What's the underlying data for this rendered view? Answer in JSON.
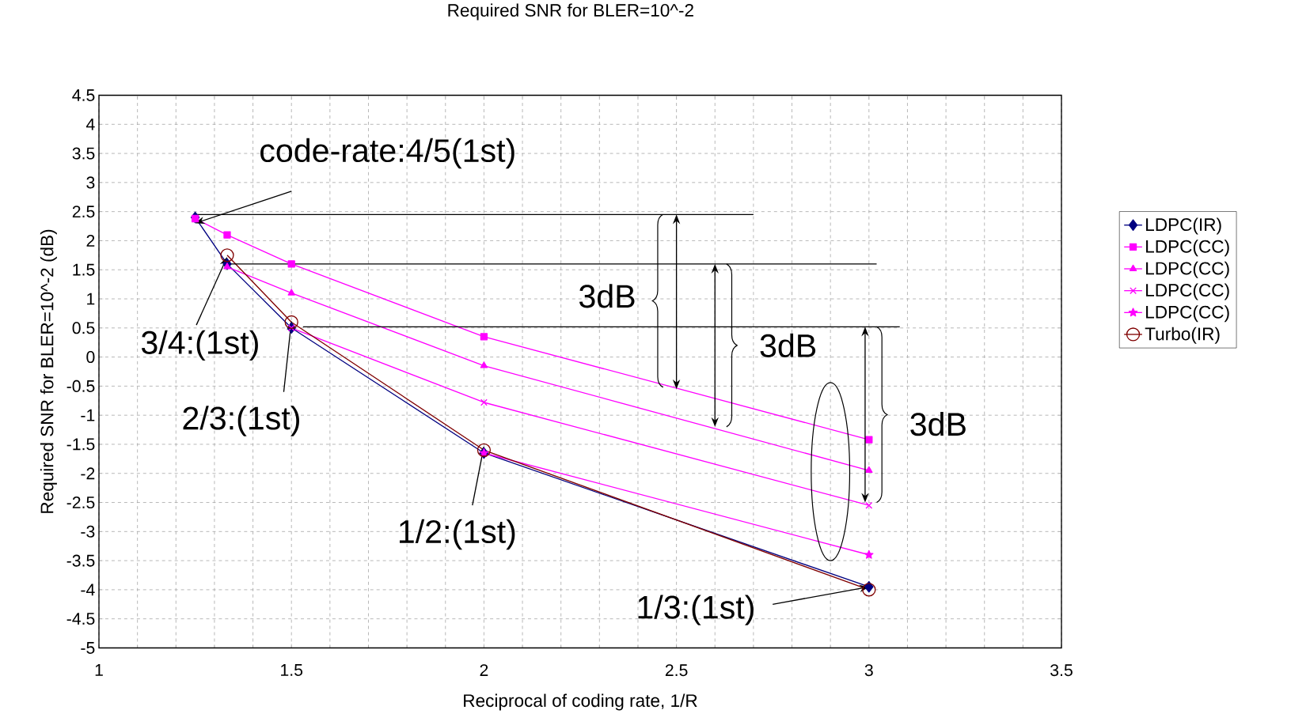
{
  "chart_data": {
    "type": "line",
    "title": "Required SNR for BLER=10^-2",
    "xlabel": "Reciprocal of coding rate, 1/R",
    "ylabel": "Required SNR for BLER=10^-2 (dB)",
    "xlim": [
      1,
      3.5
    ],
    "xticks": [
      1,
      1.5,
      2,
      2.5,
      3,
      3.5
    ],
    "ylim": [
      -5,
      4.5
    ],
    "yticks": [
      -5,
      -4.5,
      -4,
      -3.5,
      -3,
      -2.5,
      -2,
      -1.5,
      -1,
      -0.5,
      0,
      0.5,
      1,
      1.5,
      2,
      2.5,
      3,
      3.5,
      4,
      4.5
    ],
    "grid": true,
    "legend": "right",
    "series": [
      {
        "name": "LDPC(IR)",
        "color": "#000080",
        "marker": "diamond",
        "x": [
          1.25,
          1.333,
          1.5,
          2,
          3
        ],
        "values": [
          2.4,
          1.6,
          0.5,
          -1.65,
          -3.95
        ]
      },
      {
        "name": "LDPC(CC)",
        "color": "#ff00ff",
        "marker": "square",
        "x": [
          1.25,
          1.333,
          1.5,
          2,
          3
        ],
        "values": [
          2.38,
          2.1,
          1.6,
          0.35,
          -1.42
        ]
      },
      {
        "name": "LDPC(CC)",
        "color": "#ff00ff",
        "marker": "triangle",
        "x": [
          1.333,
          1.5,
          2,
          3
        ],
        "values": [
          1.55,
          1.1,
          -0.15,
          -1.95
        ]
      },
      {
        "name": "LDPC(CC)",
        "color": "#ff00ff",
        "marker": "cross",
        "x": [
          1.5,
          2,
          3
        ],
        "values": [
          0.5,
          -0.78,
          -2.55
        ]
      },
      {
        "name": "LDPC(CC)",
        "color": "#ff00ff",
        "marker": "star",
        "x": [
          2,
          3
        ],
        "values": [
          -1.65,
          -3.4
        ]
      },
      {
        "name": "Turbo(IR)",
        "color": "#800000",
        "marker": "circle",
        "x": [
          1.333,
          1.5,
          2,
          3
        ],
        "values": [
          1.75,
          0.6,
          -1.6,
          -4.0
        ]
      },
      {
        "color": "#000000",
        "marker": "none",
        "x": [
          1.25,
          2.7
        ],
        "values": [
          2.45,
          2.45
        ]
      },
      {
        "color": "#000000",
        "marker": "none",
        "x": [
          1.333,
          3.02
        ],
        "values": [
          1.6,
          1.6
        ]
      },
      {
        "color": "#000000",
        "marker": "none",
        "x": [
          1.53,
          3.08
        ],
        "values": [
          0.52,
          0.52
        ]
      }
    ],
    "annotations": [
      {
        "text": "code-rate:4/5(1st)",
        "x": 1.25,
        "y": 2.4
      },
      {
        "text": "3/4:(1st)",
        "x": 1.333,
        "y": 1.6
      },
      {
        "text": "2/3:(1st)",
        "x": 1.5,
        "y": 0.5
      },
      {
        "text": "1/2:(1st)",
        "x": 2,
        "y": -1.65
      },
      {
        "text": "1/3:(1st)",
        "x": 3,
        "y": -3.95
      },
      "3dB",
      "3dB",
      "3dB"
    ]
  }
}
